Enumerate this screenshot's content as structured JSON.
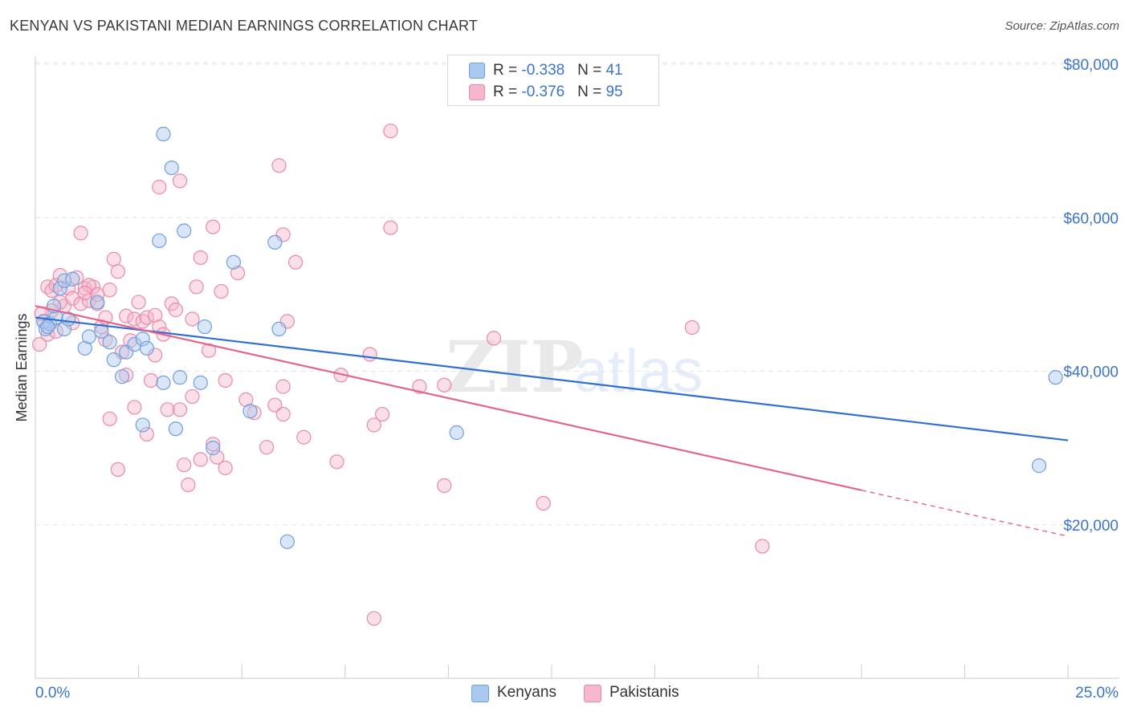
{
  "header": {
    "title": "KENYAN VS PAKISTANI MEDIAN EARNINGS CORRELATION CHART",
    "source": "Source: ZipAtlas.com"
  },
  "watermark": {
    "zip": "ZIP",
    "atlas": "atlas"
  },
  "colors": {
    "kenyan_fill": "#a9c8f0",
    "kenyan_stroke": "#6f9fdc",
    "kenyan_line": "#2f6fd0",
    "pakistani_fill": "#f6b7cb",
    "pakistani_stroke": "#e88aa8",
    "pakistani_line": "#e2648f",
    "axis_label": "#3b74cc"
  },
  "legend": {
    "rows": [
      {
        "r_label": "R = ",
        "r_value": "-0.338",
        "n_label": "N = ",
        "n_value": "41"
      },
      {
        "r_label": "R = ",
        "r_value": "-0.376",
        "n_label": "N = ",
        "n_value": "95"
      }
    ]
  },
  "bottom_legend": {
    "kenyans": "Kenyans",
    "pakistanis": "Pakistanis"
  },
  "chart_data": {
    "type": "scatter",
    "title": "KENYAN VS PAKISTANI MEDIAN EARNINGS CORRELATION CHART",
    "xlabel": "",
    "ylabel": "Median Earnings",
    "xlim": [
      0,
      25
    ],
    "ylim": [
      0,
      80000
    ],
    "x_tick_labels": [
      "0.0%",
      "25.0%"
    ],
    "y_ticks": [
      20000,
      40000,
      60000,
      80000
    ],
    "y_tick_labels": [
      "$20,000",
      "$40,000",
      "$60,000",
      "$80,000"
    ],
    "legend_position": "top-center",
    "series": [
      {
        "name": "Kenyans",
        "R": -0.338,
        "N": 41,
        "trend": {
          "x": [
            0,
            25
          ],
          "y": [
            47000,
            31000
          ]
        },
        "points": [
          [
            0.2,
            46500
          ],
          [
            0.25,
            45500
          ],
          [
            0.35,
            46200
          ],
          [
            0.5,
            47000
          ],
          [
            0.6,
            50800
          ],
          [
            0.7,
            51800
          ],
          [
            0.9,
            52000
          ],
          [
            0.45,
            48500
          ],
          [
            0.7,
            45500
          ],
          [
            1.2,
            43000
          ],
          [
            1.3,
            44500
          ],
          [
            1.5,
            49000
          ],
          [
            1.6,
            45200
          ],
          [
            1.8,
            43800
          ],
          [
            1.9,
            41500
          ],
          [
            2.1,
            39300
          ],
          [
            2.2,
            42500
          ],
          [
            2.4,
            43500
          ],
          [
            2.6,
            44200
          ],
          [
            2.7,
            43000
          ],
          [
            2.6,
            33000
          ],
          [
            3.1,
            38500
          ],
          [
            3.4,
            32500
          ],
          [
            3.5,
            39200
          ],
          [
            4.0,
            38500
          ],
          [
            4.1,
            45800
          ],
          [
            4.3,
            30000
          ],
          [
            4.8,
            54200
          ],
          [
            5.2,
            34800
          ],
          [
            5.8,
            56800
          ],
          [
            5.9,
            45500
          ],
          [
            6.1,
            17800
          ],
          [
            3.0,
            57000
          ],
          [
            3.6,
            58300
          ],
          [
            3.3,
            66500
          ],
          [
            3.1,
            70900
          ],
          [
            10.2,
            32000
          ],
          [
            24.7,
            39200
          ],
          [
            24.3,
            27700
          ],
          [
            0.3,
            45800
          ],
          [
            0.8,
            46800
          ]
        ]
      },
      {
        "name": "Pakistanis",
        "R": -0.376,
        "N": 95,
        "trend": {
          "x": [
            0,
            20
          ],
          "y": [
            48500,
            24500
          ],
          "dashed_to": {
            "x": 25,
            "y": 18500
          }
        },
        "points": [
          [
            0.1,
            43500
          ],
          [
            0.2,
            46500
          ],
          [
            0.3,
            51000
          ],
          [
            0.4,
            50500
          ],
          [
            0.5,
            51200
          ],
          [
            0.6,
            52500
          ],
          [
            0.7,
            48500
          ],
          [
            0.8,
            50800
          ],
          [
            0.9,
            49500
          ],
          [
            1.0,
            52200
          ],
          [
            1.1,
            48800
          ],
          [
            1.2,
            50800
          ],
          [
            1.3,
            49200
          ],
          [
            1.4,
            51000
          ],
          [
            1.5,
            48800
          ],
          [
            1.6,
            45800
          ],
          [
            1.7,
            47000
          ],
          [
            1.8,
            50600
          ],
          [
            1.9,
            54600
          ],
          [
            2.0,
            53000
          ],
          [
            2.1,
            42500
          ],
          [
            2.2,
            47200
          ],
          [
            2.3,
            44000
          ],
          [
            2.4,
            46800
          ],
          [
            2.5,
            49000
          ],
          [
            2.6,
            46500
          ],
          [
            2.7,
            47000
          ],
          [
            2.8,
            38800
          ],
          [
            2.9,
            47300
          ],
          [
            3.0,
            45800
          ],
          [
            3.1,
            44800
          ],
          [
            3.2,
            35000
          ],
          [
            3.3,
            48800
          ],
          [
            3.4,
            48000
          ],
          [
            3.5,
            35000
          ],
          [
            3.6,
            27800
          ],
          [
            3.7,
            25200
          ],
          [
            3.8,
            36700
          ],
          [
            3.9,
            51000
          ],
          [
            4.0,
            28500
          ],
          [
            4.2,
            42700
          ],
          [
            4.3,
            30500
          ],
          [
            4.4,
            28800
          ],
          [
            4.5,
            50400
          ],
          [
            4.6,
            38800
          ],
          [
            4.9,
            52800
          ],
          [
            5.1,
            36300
          ],
          [
            5.3,
            34600
          ],
          [
            5.6,
            30100
          ],
          [
            5.8,
            35600
          ],
          [
            6.0,
            57800
          ],
          [
            6.1,
            46500
          ],
          [
            6.3,
            54200
          ],
          [
            6.5,
            31400
          ],
          [
            7.4,
            39500
          ],
          [
            7.3,
            28200
          ],
          [
            8.1,
            42200
          ],
          [
            8.2,
            33000
          ],
          [
            8.4,
            34400
          ],
          [
            8.6,
            71300
          ],
          [
            8.6,
            58700
          ],
          [
            9.3,
            38000
          ],
          [
            9.9,
            38200
          ],
          [
            9.9,
            25100
          ],
          [
            11.1,
            44300
          ],
          [
            12.3,
            22800
          ],
          [
            15.9,
            45700
          ],
          [
            17.6,
            17200
          ],
          [
            8.2,
            7800
          ],
          [
            1.1,
            58000
          ],
          [
            2.0,
            27200
          ],
          [
            2.4,
            35300
          ],
          [
            3.0,
            64000
          ],
          [
            3.5,
            64800
          ],
          [
            4.3,
            58800
          ],
          [
            5.9,
            66800
          ],
          [
            1.8,
            33800
          ],
          [
            4.0,
            54800
          ],
          [
            2.7,
            31800
          ],
          [
            1.3,
            51200
          ],
          [
            0.6,
            49000
          ],
          [
            0.9,
            46300
          ],
          [
            1.7,
            44100
          ],
          [
            2.2,
            39500
          ],
          [
            3.8,
            46800
          ],
          [
            4.6,
            27400
          ],
          [
            6.0,
            34400
          ],
          [
            1.2,
            50200
          ],
          [
            0.4,
            47900
          ],
          [
            1.5,
            50000
          ],
          [
            0.3,
            44800
          ],
          [
            0.15,
            47500
          ],
          [
            0.5,
            45200
          ],
          [
            2.9,
            42100
          ],
          [
            6.0,
            38000
          ]
        ]
      }
    ]
  }
}
